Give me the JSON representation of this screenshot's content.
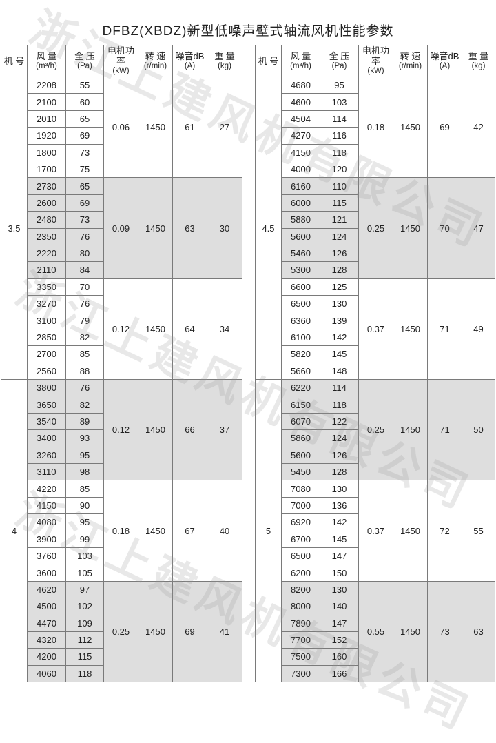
{
  "title": "DFBZ(XBDZ)新型低噪声壁式轴流风机性能参数",
  "watermark": "浙江上建风机有限公司",
  "colors": {
    "shade": "#dedede",
    "border": "#7a7a7a"
  },
  "headers": [
    {
      "l1": "机 号",
      "l2": ""
    },
    {
      "l1": "风 量",
      "l2": "(m³/h)"
    },
    {
      "l1": "全 压",
      "l2": "(Pa)"
    },
    {
      "l1": "电机功率",
      "l2": "(kW)"
    },
    {
      "l1": "转 速",
      "l2": "(r/min)"
    },
    {
      "l1": "噪音dB",
      "l2": "(A)"
    },
    {
      "l1": "重 量",
      "l2": "(kg)"
    }
  ],
  "tables": [
    {
      "models": [
        {
          "model": "3.5",
          "groups": [
            {
              "power": "0.06",
              "speed": "1450",
              "noise": "61",
              "weight": "27",
              "rows": [
                [
                  "2208",
                  "55"
                ],
                [
                  "2100",
                  "60"
                ],
                [
                  "2010",
                  "65"
                ],
                [
                  "1920",
                  "69"
                ],
                [
                  "1800",
                  "73"
                ],
                [
                  "1700",
                  "75"
                ]
              ]
            },
            {
              "power": "0.09",
              "speed": "1450",
              "noise": "63",
              "weight": "30",
              "rows": [
                [
                  "2730",
                  "65"
                ],
                [
                  "2600",
                  "69"
                ],
                [
                  "2480",
                  "73"
                ],
                [
                  "2350",
                  "76"
                ],
                [
                  "2220",
                  "80"
                ],
                [
                  "2110",
                  "84"
                ]
              ]
            },
            {
              "power": "0.12",
              "speed": "1450",
              "noise": "64",
              "weight": "34",
              "rows": [
                [
                  "3350",
                  "70"
                ],
                [
                  "3270",
                  "76"
                ],
                [
                  "3100",
                  "79"
                ],
                [
                  "2850",
                  "82"
                ],
                [
                  "2700",
                  "85"
                ],
                [
                  "2560",
                  "88"
                ]
              ]
            }
          ]
        },
        {
          "model": "4",
          "groups": [
            {
              "power": "0.12",
              "speed": "1450",
              "noise": "66",
              "weight": "37",
              "rows": [
                [
                  "3800",
                  "76"
                ],
                [
                  "3650",
                  "82"
                ],
                [
                  "3540",
                  "89"
                ],
                [
                  "3400",
                  "93"
                ],
                [
                  "3260",
                  "95"
                ],
                [
                  "3110",
                  "98"
                ]
              ]
            },
            {
              "power": "0.18",
              "speed": "1450",
              "noise": "67",
              "weight": "40",
              "rows": [
                [
                  "4220",
                  "85"
                ],
                [
                  "4150",
                  "90"
                ],
                [
                  "4080",
                  "95"
                ],
                [
                  "3900",
                  "99"
                ],
                [
                  "3760",
                  "103"
                ],
                [
                  "3600",
                  "105"
                ]
              ]
            },
            {
              "power": "0.25",
              "speed": "1450",
              "noise": "69",
              "weight": "41",
              "rows": [
                [
                  "4620",
                  "97"
                ],
                [
                  "4500",
                  "102"
                ],
                [
                  "4470",
                  "109"
                ],
                [
                  "4320",
                  "112"
                ],
                [
                  "4200",
                  "115"
                ],
                [
                  "4060",
                  "118"
                ]
              ]
            }
          ]
        }
      ]
    },
    {
      "models": [
        {
          "model": "4.5",
          "groups": [
            {
              "power": "0.18",
              "speed": "1450",
              "noise": "69",
              "weight": "42",
              "rows": [
                [
                  "4680",
                  "95"
                ],
                [
                  "4600",
                  "103"
                ],
                [
                  "4504",
                  "114"
                ],
                [
                  "4270",
                  "116"
                ],
                [
                  "4150",
                  "118"
                ],
                [
                  "4000",
                  "120"
                ]
              ]
            },
            {
              "power": "0.25",
              "speed": "1450",
              "noise": "70",
              "weight": "47",
              "rows": [
                [
                  "6160",
                  "110"
                ],
                [
                  "6000",
                  "115"
                ],
                [
                  "5880",
                  "121"
                ],
                [
                  "5600",
                  "124"
                ],
                [
                  "5460",
                  "126"
                ],
                [
                  "5300",
                  "128"
                ]
              ]
            },
            {
              "power": "0.37",
              "speed": "1450",
              "noise": "71",
              "weight": "49",
              "rows": [
                [
                  "6600",
                  "125"
                ],
                [
                  "6500",
                  "130"
                ],
                [
                  "6360",
                  "139"
                ],
                [
                  "6100",
                  "142"
                ],
                [
                  "5820",
                  "145"
                ],
                [
                  "5660",
                  "148"
                ]
              ]
            }
          ]
        },
        {
          "model": "5",
          "groups": [
            {
              "power": "0.25",
              "speed": "1450",
              "noise": "71",
              "weight": "50",
              "rows": [
                [
                  "6220",
                  "114"
                ],
                [
                  "6150",
                  "118"
                ],
                [
                  "6070",
                  "122"
                ],
                [
                  "5860",
                  "124"
                ],
                [
                  "5600",
                  "126"
                ],
                [
                  "5450",
                  "128"
                ]
              ]
            },
            {
              "power": "0.37",
              "speed": "1450",
              "noise": "72",
              "weight": "55",
              "rows": [
                [
                  "7080",
                  "130"
                ],
                [
                  "7000",
                  "136"
                ],
                [
                  "6920",
                  "142"
                ],
                [
                  "6700",
                  "145"
                ],
                [
                  "6500",
                  "147"
                ],
                [
                  "6200",
                  "150"
                ]
              ]
            },
            {
              "power": "0.55",
              "speed": "1450",
              "noise": "73",
              "weight": "63",
              "rows": [
                [
                  "8200",
                  "130"
                ],
                [
                  "8000",
                  "140"
                ],
                [
                  "7890",
                  "147"
                ],
                [
                  "7700",
                  "152"
                ],
                [
                  "7500",
                  "160"
                ],
                [
                  "7300",
                  "166"
                ]
              ]
            }
          ]
        }
      ]
    }
  ]
}
